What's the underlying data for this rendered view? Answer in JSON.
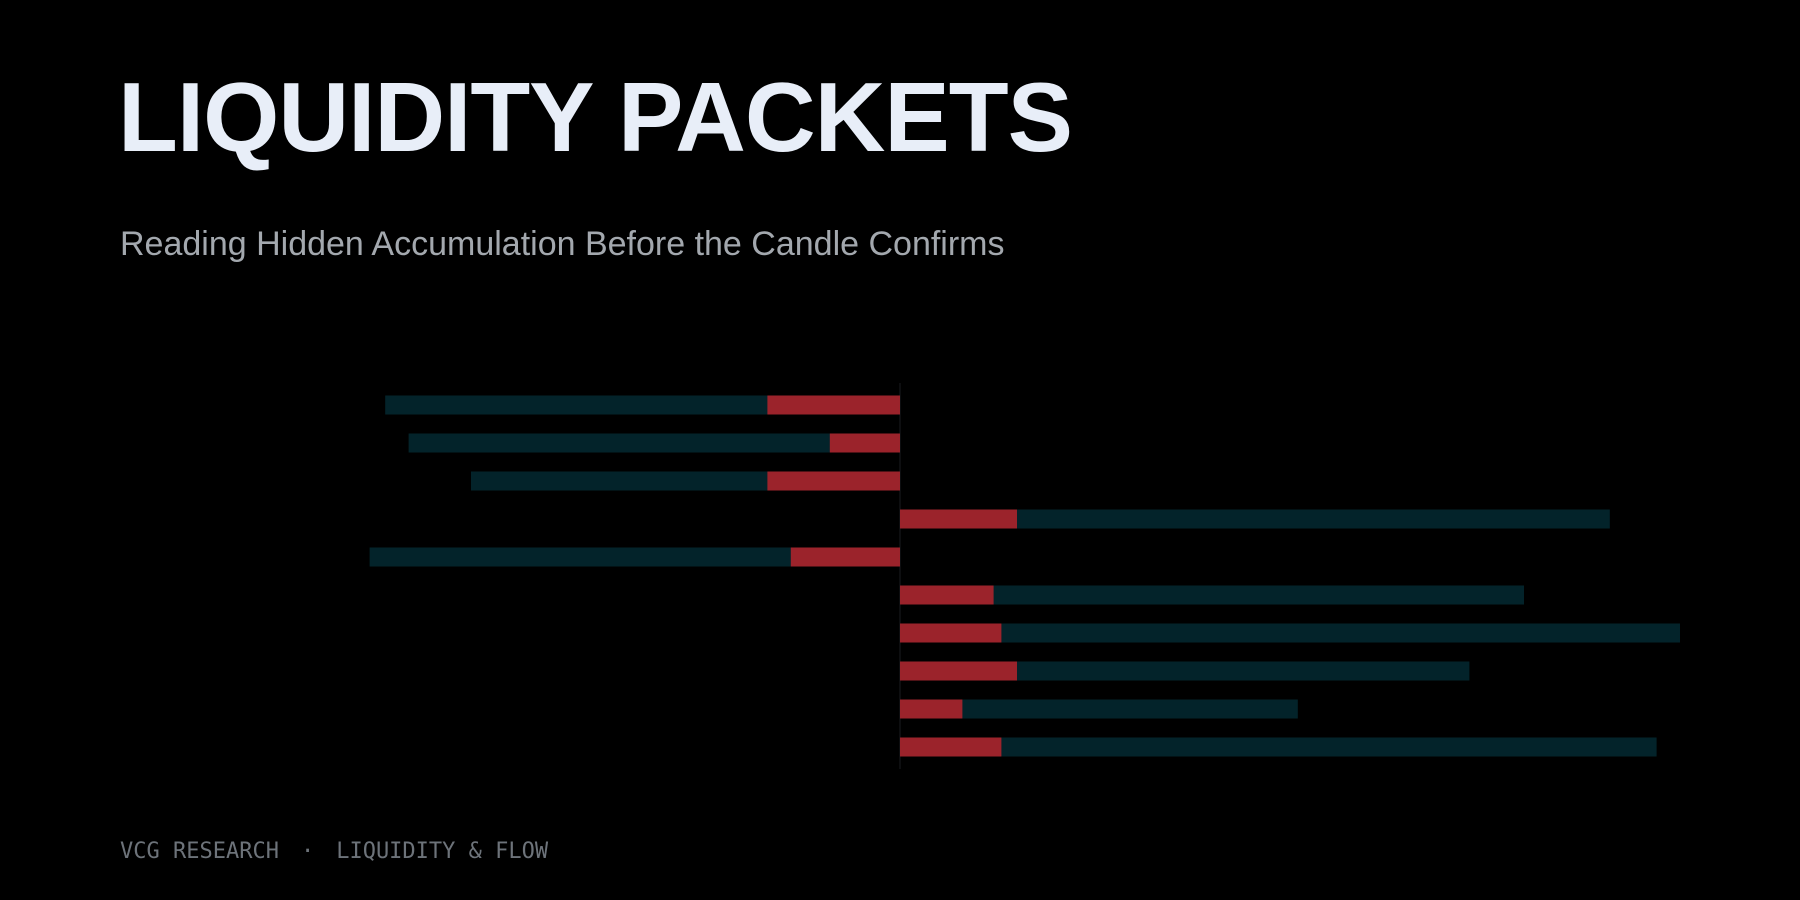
{
  "header": {
    "title": "LIQUIDITY PACKETS",
    "subtitle": "Reading Hidden Accumulation Before the Candle Confirms"
  },
  "footer": {
    "org": "VCG RESEARCH",
    "separator": "·",
    "section": "LIQUIDITY & FLOW"
  },
  "colors": {
    "background": "#000000",
    "passive": "#03232a",
    "aggressive": "#9b232b",
    "axis": "#1a1c1f"
  },
  "chart_data": {
    "type": "bar",
    "orientation": "horizontal-diverging",
    "baseline": 0,
    "xlim": [
      -1,
      1
    ],
    "rows": [
      {
        "direction": -1,
        "total": 0.66,
        "aggressive": 0.17
      },
      {
        "direction": -1,
        "total": 0.63,
        "aggressive": 0.09
      },
      {
        "direction": -1,
        "total": 0.55,
        "aggressive": 0.17
      },
      {
        "direction": 1,
        "total": 0.91,
        "aggressive": 0.15
      },
      {
        "direction": -1,
        "total": 0.68,
        "aggressive": 0.14
      },
      {
        "direction": 1,
        "total": 0.8,
        "aggressive": 0.12
      },
      {
        "direction": 1,
        "total": 1.0,
        "aggressive": 0.13
      },
      {
        "direction": 1,
        "total": 0.73,
        "aggressive": 0.15
      },
      {
        "direction": 1,
        "total": 0.51,
        "aggressive": 0.08
      },
      {
        "direction": 1,
        "total": 0.97,
        "aggressive": 0.13
      }
    ]
  }
}
